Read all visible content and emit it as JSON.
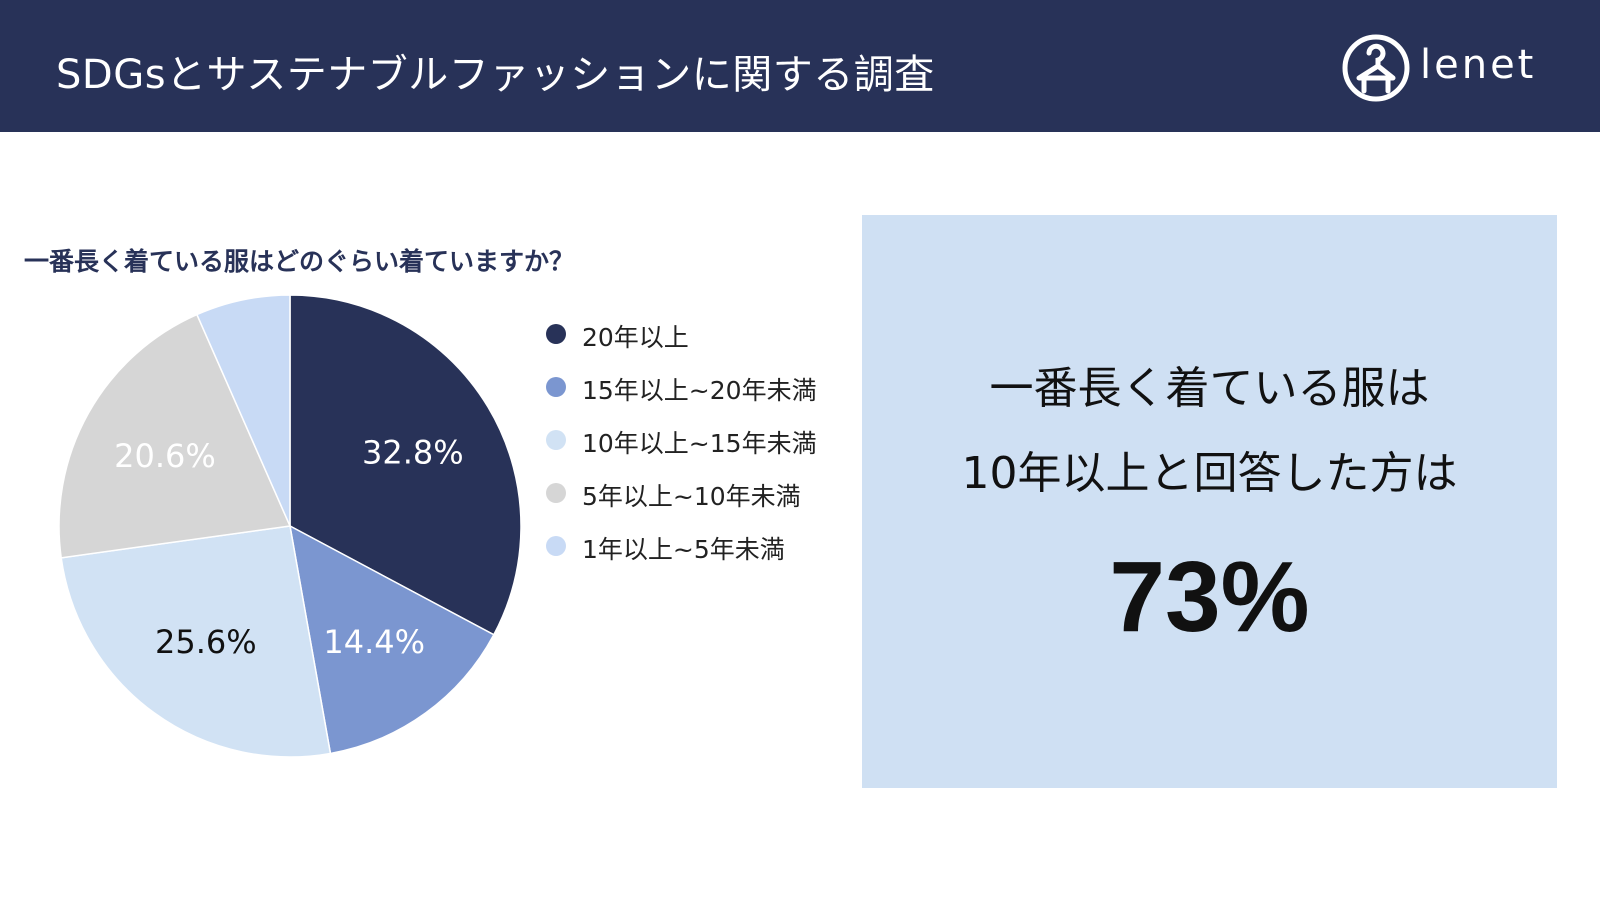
{
  "header": {
    "title": "SDGsとサステナブルファッションに関する調査",
    "logo_text": "lenet",
    "logo_icon": "hanger-person-icon"
  },
  "chart_data": {
    "type": "pie",
    "title": "一番長く着ている服はどのぐらい着ていますか？",
    "legend_position": "right",
    "slices": [
      {
        "name": "20年以上",
        "value": 32.8,
        "label": "32.8%",
        "color": "#283258",
        "label_color": "#ffffff"
      },
      {
        "name": "15年以上~20年未満",
        "value": 14.4,
        "label": "14.4%",
        "color": "#7b96d0",
        "label_color": "#ffffff"
      },
      {
        "name": "10年以上~15年未満",
        "value": 25.6,
        "label": "25.6%",
        "color": "#d1e2f4",
        "label_color": "#111111"
      },
      {
        "name": "5年以上~10年未満",
        "value": 20.6,
        "label": "20.6%",
        "color": "#d6d6d6",
        "label_color": "#ffffff"
      },
      {
        "name": "1年以上~5年未満",
        "value": 6.6,
        "label": "",
        "color": "#c8daf5",
        "label_color": "#111111"
      }
    ]
  },
  "callout": {
    "line1": "一番長く着ている服は",
    "line2": "10年以上と回答した方は",
    "value": "73%"
  },
  "colors": {
    "header_bg": "#283258",
    "callout_bg": "#cfe0f3"
  }
}
